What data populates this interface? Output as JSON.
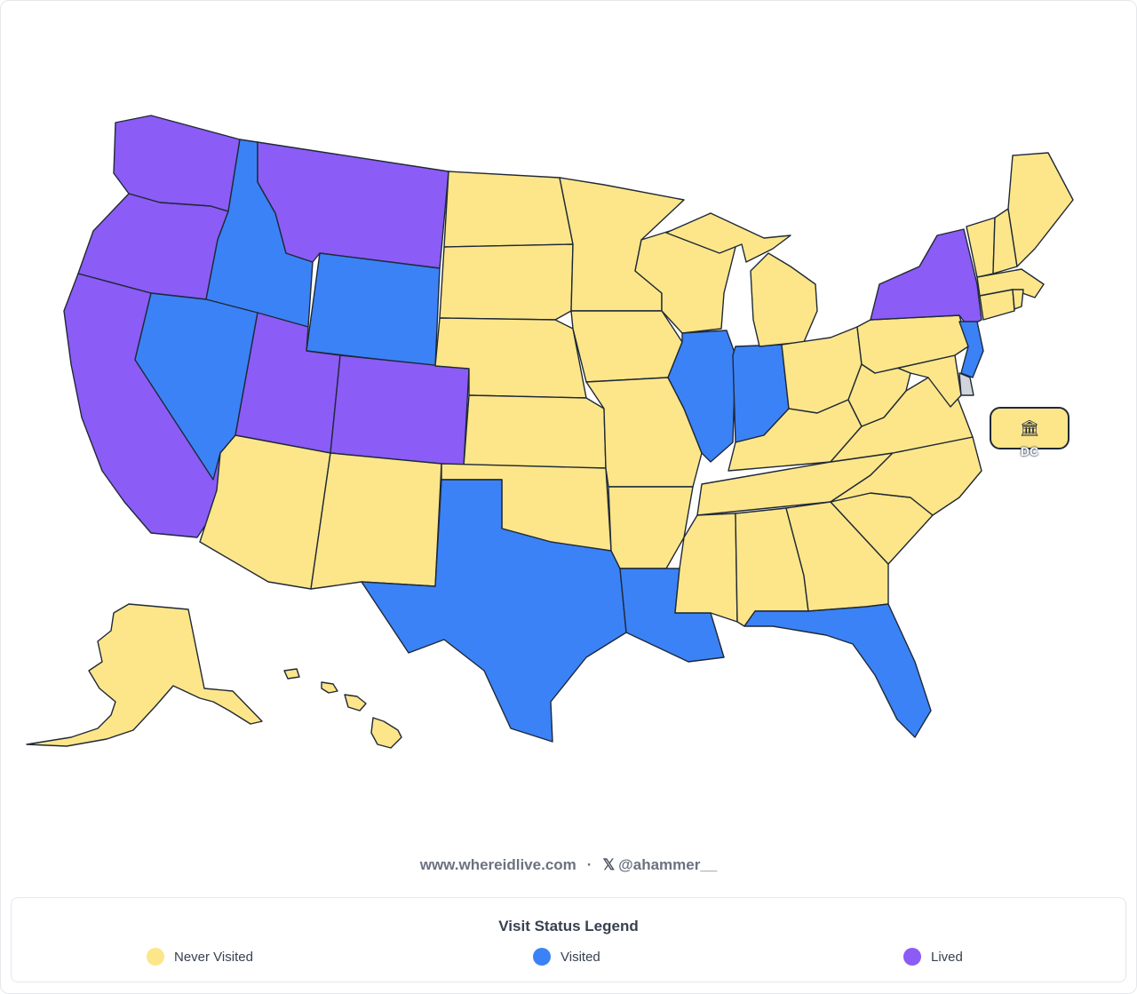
{
  "colors": {
    "never": "#fde68a",
    "visited": "#3b82f6",
    "lived": "#8b5cf6",
    "unset": "#d1d5db",
    "border": "#1f2937"
  },
  "states": {
    "WA": "lived",
    "OR": "lived",
    "CA": "lived",
    "MT": "lived",
    "UT": "lived",
    "CO": "lived",
    "NY": "lived",
    "ID": "visited",
    "NV": "visited",
    "WY": "visited",
    "TX": "visited",
    "LA": "visited",
    "IL": "visited",
    "IN": "visited",
    "FL": "visited",
    "NJ": "visited",
    "AZ": "never",
    "NM": "never",
    "ND": "never",
    "SD": "never",
    "NE": "never",
    "KS": "never",
    "OK": "never",
    "MN": "never",
    "IA": "never",
    "MO": "never",
    "AR": "never",
    "WI": "never",
    "MI": "never",
    "OH": "never",
    "KY": "never",
    "TN": "never",
    "MS": "never",
    "AL": "never",
    "GA": "never",
    "SC": "never",
    "NC": "never",
    "VA": "never",
    "WV": "never",
    "MD": "never",
    "PA": "never",
    "VT": "never",
    "NH": "never",
    "ME": "never",
    "MA": "never",
    "CT": "never",
    "RI": "never",
    "AK": "never",
    "HI": "never",
    "DC": "never",
    "DE": "unset"
  },
  "dc": {
    "icon": "bank-icon",
    "label": "DC"
  },
  "footer": {
    "site": "www.whereidlive.com",
    "separator": "·",
    "x_glyph": "𝕏",
    "handle": "@ahammer__"
  },
  "legend": {
    "title": "Visit Status Legend",
    "items": [
      {
        "label": "Never Visited",
        "color": "#fde68a"
      },
      {
        "label": "Visited",
        "color": "#3b82f6"
      },
      {
        "label": "Lived",
        "color": "#8b5cf6"
      }
    ]
  }
}
